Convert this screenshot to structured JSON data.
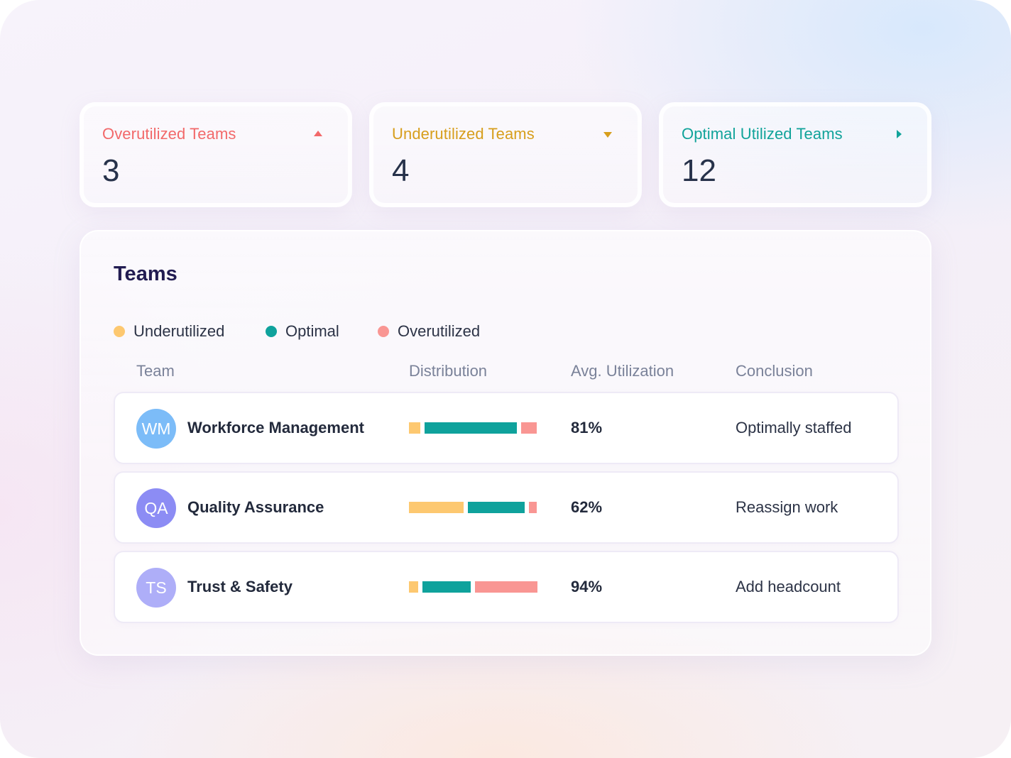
{
  "colors": {
    "overutilized": "#f2696a",
    "underutilized": "#d79e1c",
    "optimal": "#11a39a",
    "seg_under": "#fdc870",
    "seg_optimal": "#0fa29c",
    "seg_over": "#f99693"
  },
  "stats": [
    {
      "id": "over",
      "title": "Overutilized Teams",
      "value": "3",
      "icon": "caret-up-icon"
    },
    {
      "id": "under",
      "title": "Underutilized Teams",
      "value": "4",
      "icon": "caret-down-icon"
    },
    {
      "id": "optimal",
      "title": "Optimal Utilized Teams",
      "value": "12",
      "icon": "caret-right-icon"
    }
  ],
  "panel": {
    "title": "Teams",
    "legend": [
      "Underutilized",
      "Optimal",
      "Overutilized"
    ],
    "columns": [
      "Team",
      "Distribution",
      "Avg. Utilization",
      "Conclusion"
    ],
    "rows": [
      {
        "initials": "WM",
        "avatar_color": "#7cbcf8",
        "team": "Workforce Management",
        "distribution": {
          "underutilized": 9,
          "optimal": 72,
          "overutilized": 12
        },
        "avg_utilization": "81%",
        "conclusion": "Optimally staffed"
      },
      {
        "initials": "QA",
        "avatar_color": "#8c8cf4",
        "team": "Quality Assurance",
        "distribution": {
          "underutilized": 43,
          "optimal": 45,
          "overutilized": 6
        },
        "avg_utilization": "62%",
        "conclusion": "Reassign work"
      },
      {
        "initials": "TS",
        "avatar_color": "#aeaef8",
        "team": "Trust & Safety",
        "distribution": {
          "underutilized": 7,
          "optimal": 38,
          "overutilized": 49
        },
        "avg_utilization": "94%",
        "conclusion": "Add headcount"
      }
    ]
  }
}
